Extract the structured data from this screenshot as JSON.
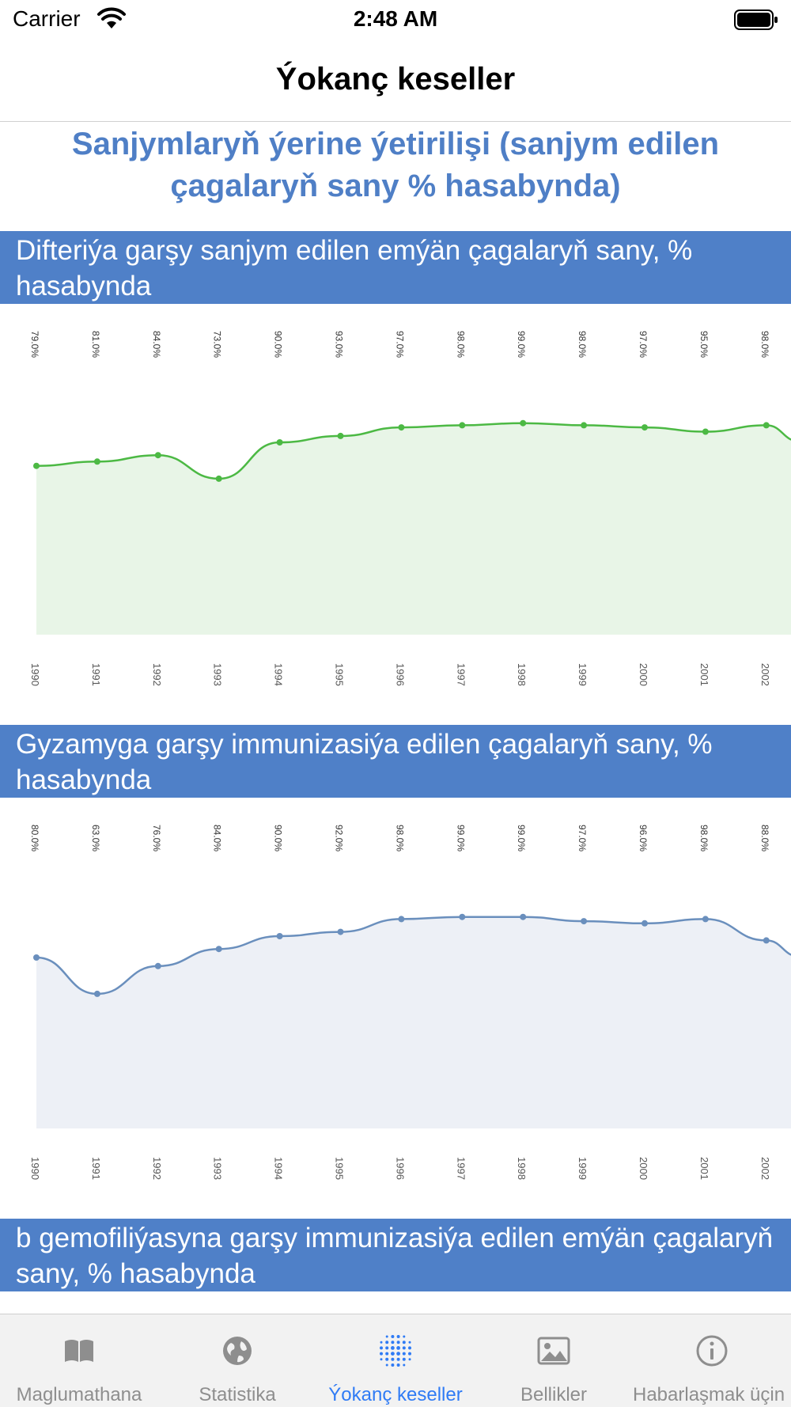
{
  "status_bar": {
    "carrier": "Carrier",
    "time": "2:48 AM"
  },
  "nav": {
    "title": "Ýokanç keseller"
  },
  "page_heading": "Sanjymlaryň ýerine ýetirilişi (sanjym edilen çagalaryň sany % hasabynda)",
  "sections": [
    {
      "title": "Difteriýa garşy sanjym edilen emýän çagalaryň sany, % hasabynda"
    },
    {
      "title": "Gyzamyga garşy immunizasiýa edilen çagalaryň sany, % hasabynda"
    },
    {
      "title": "b gemofiliýasyna garşy immunizasiýa edilen emýän çagalaryň sany, % hasabynda"
    }
  ],
  "chart_data": [
    {
      "type": "area",
      "title": "Difteriýa garşy sanjym edilen emýän çagalaryň sany, % hasabynda",
      "categories": [
        "1990",
        "1991",
        "1992",
        "1993",
        "1994",
        "1995",
        "1996",
        "1997",
        "1998",
        "1999",
        "2000",
        "2001",
        "2002"
      ],
      "values": [
        79.0,
        81.0,
        84.0,
        73.0,
        90.0,
        93.0,
        97.0,
        98.0,
        99.0,
        98.0,
        97.0,
        95.0,
        98.0
      ],
      "value_labels": [
        "79.0%",
        "81.0%",
        "84.0%",
        "73.0%",
        "90.0%",
        "93.0%",
        "97.0%",
        "98.0%",
        "99.0%",
        "98.0%",
        "97.0%",
        "95.0%",
        "98.0%"
      ],
      "ylim": [
        0,
        100
      ],
      "line_color": "#4cb944",
      "fill_color": "#e8f5e7",
      "grid": false,
      "legend": "none"
    },
    {
      "type": "area",
      "title": "Gyzamyga garşy immunizasiýa edilen çagalaryň sany, % hasabynda",
      "categories": [
        "1990",
        "1991",
        "1992",
        "1993",
        "1994",
        "1995",
        "1996",
        "1997",
        "1998",
        "1999",
        "2000",
        "2001",
        "2002"
      ],
      "values": [
        80.0,
        63.0,
        76.0,
        84.0,
        90.0,
        92.0,
        98.0,
        99.0,
        99.0,
        97.0,
        96.0,
        98.0,
        88.0
      ],
      "value_labels": [
        "80.0%",
        "63.0%",
        "76.0%",
        "84.0%",
        "90.0%",
        "92.0%",
        "98.0%",
        "99.0%",
        "99.0%",
        "97.0%",
        "96.0%",
        "98.0%",
        "88.0%"
      ],
      "ylim": [
        0,
        100
      ],
      "line_color": "#6a8fbd",
      "fill_color": "#edf0f6",
      "grid": false,
      "legend": "none"
    }
  ],
  "tab_bar": {
    "items": [
      {
        "label": "Maglumathana",
        "icon": "book-icon",
        "active": false
      },
      {
        "label": "Statistika",
        "icon": "globe-icon",
        "active": false
      },
      {
        "label": "Ýokanç keseller",
        "icon": "dots-grid-icon",
        "active": true
      },
      {
        "label": "Bellikler",
        "icon": "photo-icon",
        "active": false
      },
      {
        "label": "Habarlaşmak üçin maglumat",
        "icon": "info-icon",
        "active": false
      }
    ],
    "active_color": "#2f7bf5",
    "inactive_color": "#8e8e8e"
  }
}
